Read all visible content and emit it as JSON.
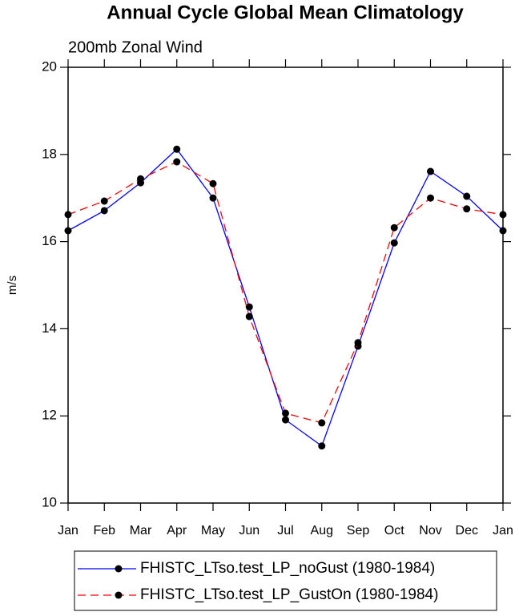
{
  "chart_data": {
    "type": "line",
    "title": "Annual Cycle Global Mean Climatology",
    "subtitle": "200mb Zonal Wind",
    "y_label": "m/s",
    "categories": [
      "Jan",
      "Feb",
      "Mar",
      "Apr",
      "May",
      "Jun",
      "Jul",
      "Aug",
      "Sep",
      "Oct",
      "Nov",
      "Dec",
      "Jan"
    ],
    "series": [
      {
        "name": "FHISTC_LTso.test_LP_noGust (1980-1984)",
        "color": "#0000ff",
        "dash": "none",
        "values": [
          16.25,
          16.71,
          17.35,
          18.12,
          17.0,
          14.5,
          11.91,
          11.31,
          13.6,
          15.97,
          17.61,
          17.04,
          16.25
        ]
      },
      {
        "name": "FHISTC_LTso.test_LP_GustOn (1980-1984)",
        "color": "#ff0000",
        "dash": "10 6",
        "values": [
          16.62,
          16.93,
          17.44,
          17.83,
          17.33,
          14.28,
          12.06,
          11.84,
          13.68,
          16.32,
          17.0,
          16.75,
          16.62
        ]
      }
    ],
    "marker_color": "#000000",
    "ylim": [
      10,
      20
    ],
    "yticks": [
      10,
      12,
      14,
      16,
      18,
      20
    ]
  }
}
